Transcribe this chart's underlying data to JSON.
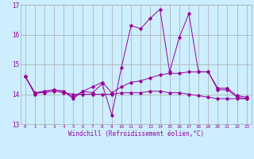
{
  "xlabel": "Windchill (Refroidissement éolien,°C)",
  "bg_color": "#cceeff",
  "line_color": "#990099",
  "grid_color": "#aaaaaa",
  "xlim": [
    -0.5,
    23.5
  ],
  "ylim": [
    13,
    17
  ],
  "yticks": [
    13,
    14,
    15,
    16,
    17
  ],
  "xticks": [
    0,
    1,
    2,
    3,
    4,
    5,
    6,
    7,
    8,
    9,
    10,
    11,
    12,
    13,
    14,
    15,
    16,
    17,
    18,
    19,
    20,
    21,
    22,
    23
  ],
  "series": [
    {
      "x": [
        0,
        1,
        2,
        3,
        4,
        5,
        6,
        7,
        8,
        9,
        10,
        11,
        12,
        13,
        14,
        15,
        16,
        17,
        18,
        19,
        20,
        21,
        22,
        23
      ],
      "y": [
        14.6,
        14.0,
        14.1,
        14.15,
        14.1,
        13.85,
        14.1,
        14.05,
        14.35,
        13.3,
        14.9,
        16.3,
        16.2,
        16.55,
        16.85,
        14.75,
        15.9,
        16.7,
        14.75,
        14.75,
        14.15,
        14.15,
        13.9,
        13.85
      ]
    },
    {
      "x": [
        0,
        1,
        2,
        3,
        4,
        5,
        6,
        7,
        8,
        9,
        10,
        11,
        12,
        13,
        14,
        15,
        16,
        17,
        18,
        19,
        20,
        21,
        22,
        23
      ],
      "y": [
        14.6,
        14.05,
        14.1,
        14.15,
        14.1,
        13.9,
        14.1,
        14.25,
        14.4,
        14.05,
        14.25,
        14.4,
        14.45,
        14.55,
        14.65,
        14.7,
        14.7,
        14.75,
        14.75,
        14.75,
        14.2,
        14.2,
        13.95,
        13.9
      ]
    },
    {
      "x": [
        0,
        1,
        2,
        3,
        4,
        5,
        6,
        7,
        8,
        9,
        10,
        11,
        12,
        13,
        14,
        15,
        16,
        17,
        18,
        19,
        20,
        21,
        22,
        23
      ],
      "y": [
        14.6,
        14.05,
        14.05,
        14.1,
        14.05,
        14.0,
        14.0,
        14.0,
        14.0,
        14.0,
        14.05,
        14.05,
        14.05,
        14.1,
        14.1,
        14.05,
        14.05,
        14.0,
        13.95,
        13.9,
        13.85,
        13.85,
        13.85,
        13.85
      ]
    }
  ]
}
